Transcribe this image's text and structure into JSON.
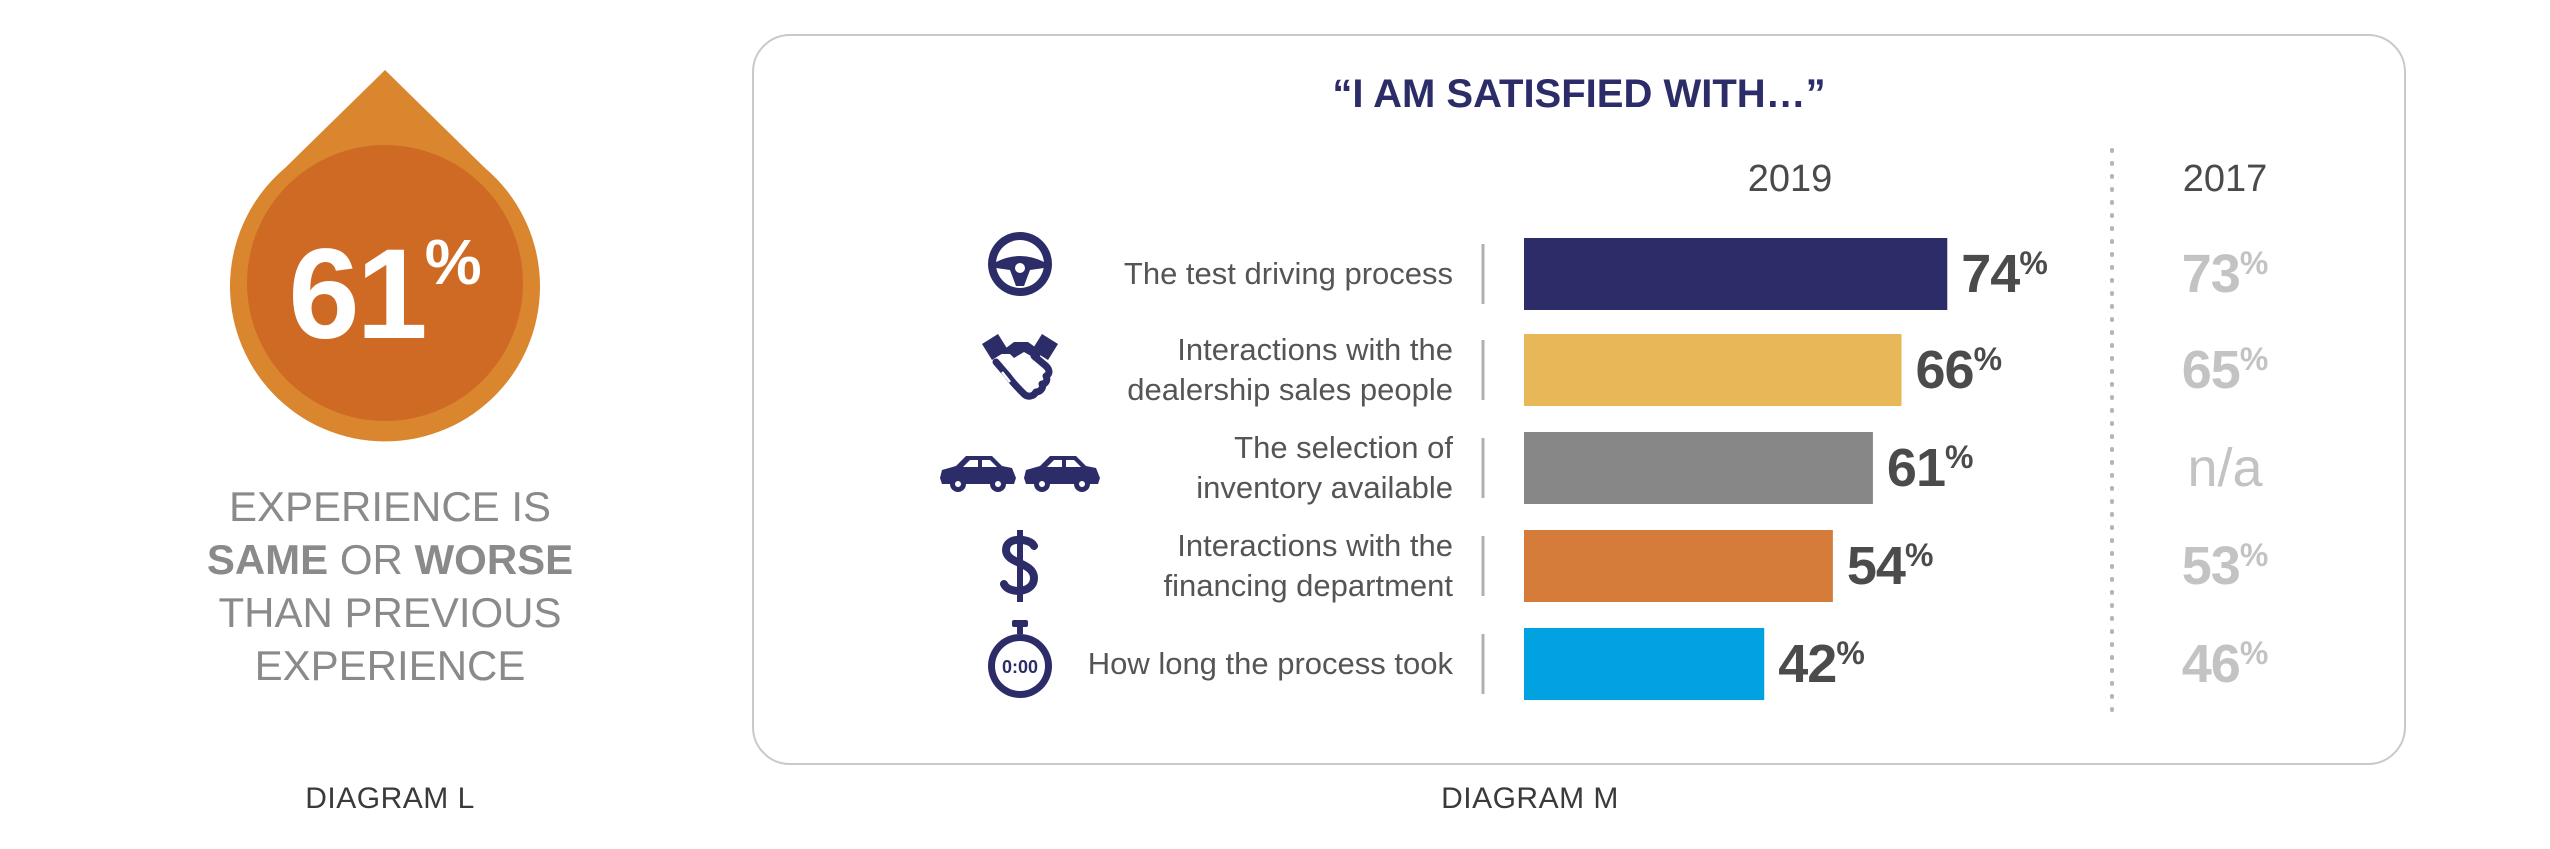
{
  "diagram_l": {
    "value": "61",
    "pct_sign": "%",
    "text_line1": "EXPERIENCE IS",
    "text_bold1": "SAME",
    "text_mid": " OR ",
    "text_bold2": "WORSE",
    "text_line3": "THAN PREVIOUS",
    "text_line4": "EXPERIENCE",
    "label": "DIAGRAM L",
    "colors": {
      "outer": "#d9862e",
      "inner": "#cf6a25"
    }
  },
  "diagram_m": {
    "label": "DIAGRAM M"
  },
  "chart_data": {
    "type": "bar",
    "orientation": "horizontal",
    "title": "“I AM SATISFIED WITH…”",
    "column_headers": [
      "2019",
      "2017"
    ],
    "categories": [
      "The test driving process",
      "Interactions with the dealership sales people",
      "The selection of inventory available",
      "Interactions with the financing department",
      "How long the process took"
    ],
    "label_lines": [
      [
        "The test driving process"
      ],
      [
        "Interactions with the",
        "dealership sales people"
      ],
      [
        "The selection of",
        "inventory available"
      ],
      [
        "Interactions with the",
        "financing department"
      ],
      [
        "How long the process took"
      ]
    ],
    "icons": [
      "steering-wheel-icon",
      "handshake-icon",
      "cars-icon",
      "dollar-icon",
      "stopwatch-icon"
    ],
    "stopwatch_text": "0:00",
    "series": [
      {
        "values": [
          74,
          66,
          61,
          54,
          42
        ],
        "value_labels": [
          "74",
          "66",
          "61",
          "54",
          "42"
        ]
      }
    ],
    "previous_values": [
      "73",
      "65",
      "n/a",
      "53",
      "46"
    ],
    "unit": "%",
    "bar_colors": [
      "#2b2c68",
      "#e8b758",
      "#878787",
      "#d67c3a",
      "#00a3e0"
    ],
    "xlim": [
      0,
      100
    ]
  }
}
